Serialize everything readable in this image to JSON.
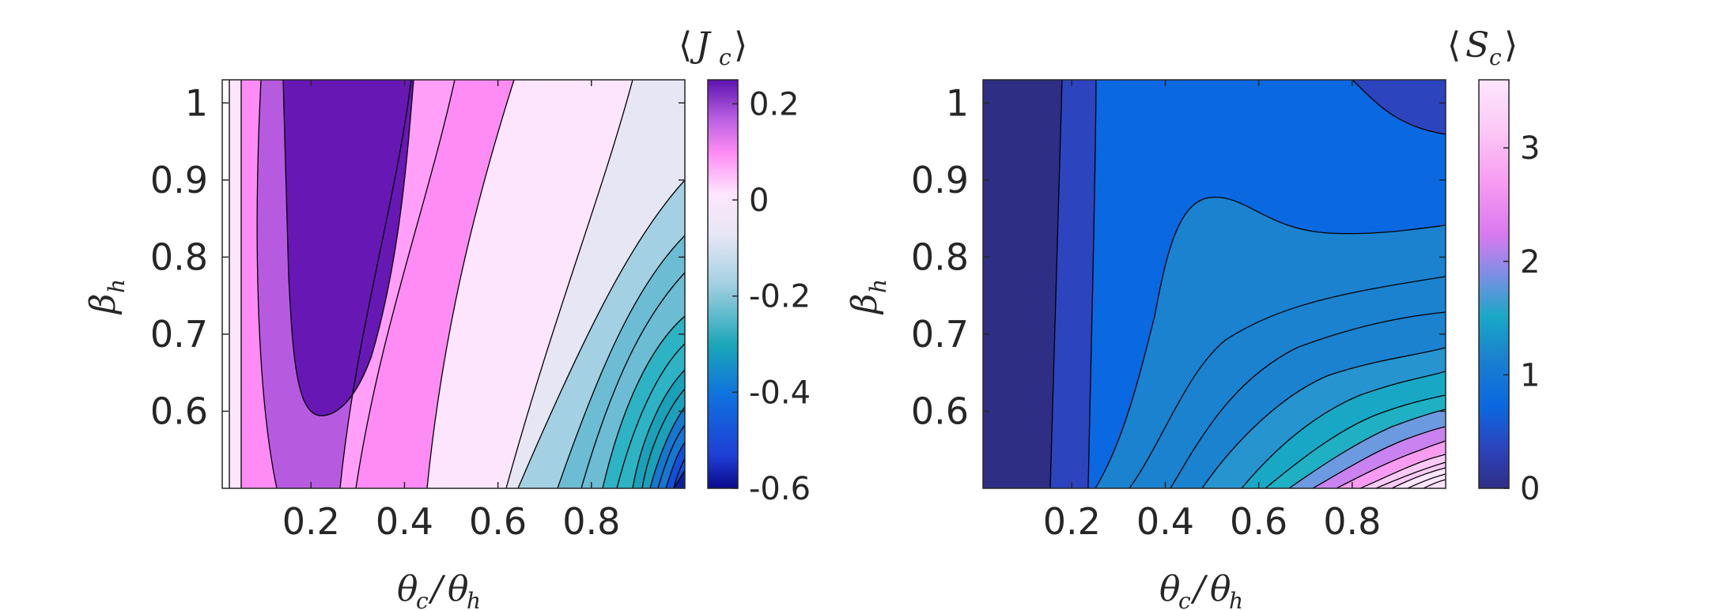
{
  "chart_data": [
    {
      "type": "contour",
      "colorbar_title_base": "J",
      "colorbar_title_sub": "c",
      "xlabel": {
        "num": "θ",
        "num_sub": "c",
        "den": "θ",
        "den_sub": "h"
      },
      "ylabel": {
        "base": "β",
        "sub": "h"
      },
      "xlim": [
        0.01,
        1.0
      ],
      "ylim": [
        0.5,
        1.03
      ],
      "xticks": [
        "0.2",
        "0.4",
        "0.6",
        "0.8"
      ],
      "yticks": [
        "0.6",
        "0.7",
        "0.8",
        "0.9",
        "1"
      ],
      "colorbar": {
        "range": [
          -0.6,
          0.25
        ],
        "ticks": [
          "0.2",
          "0",
          "-0.2",
          "-0.4",
          "-0.6"
        ]
      },
      "contour_levels": [
        -0.6,
        -0.55,
        -0.5,
        -0.45,
        -0.4,
        -0.35,
        -0.3,
        -0.25,
        -0.2,
        -0.15,
        -0.1,
        -0.05,
        0,
        0.05,
        0.1,
        0.15,
        0.2,
        0.25
      ],
      "features": {
        "max_region_minimum_at": [
          0.22,
          0.6
        ],
        "max_region_value": 0.2,
        "min_value_at_corner": [
          1.0,
          0.5
        ]
      }
    },
    {
      "type": "contour",
      "colorbar_title_base": "S",
      "colorbar_title_sub": "c",
      "xlabel": {
        "num": "θ",
        "num_sub": "c",
        "den": "θ",
        "den_sub": "h"
      },
      "ylabel": {
        "base": "β",
        "sub": "h"
      },
      "xlim": [
        0.01,
        1.0
      ],
      "ylim": [
        0.5,
        1.03
      ],
      "xticks": [
        "0.2",
        "0.4",
        "0.6",
        "0.8"
      ],
      "yticks": [
        "0.6",
        "0.7",
        "0.8",
        "0.9",
        "1"
      ],
      "colorbar": {
        "range": [
          0,
          3.6
        ],
        "ticks": [
          "3",
          "2",
          "1",
          "0"
        ]
      },
      "contour_levels": [
        0,
        0.25,
        0.5,
        0.75,
        1.0,
        1.25,
        1.5,
        1.75,
        2.0,
        2.25,
        2.5,
        2.75,
        3.0,
        3.25,
        3.5
      ],
      "features": {
        "saddle_bump_at": [
          0.5,
          0.87
        ],
        "max_value_at_corner": [
          1.0,
          0.5
        ]
      }
    }
  ]
}
